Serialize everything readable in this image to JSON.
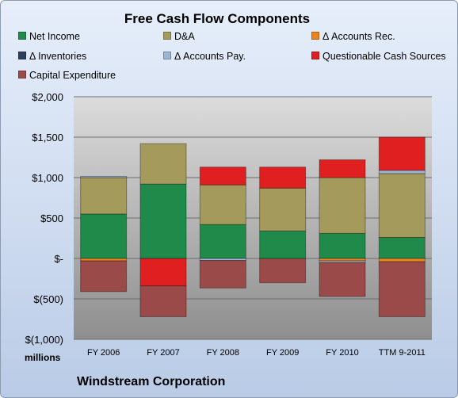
{
  "chart_data": {
    "type": "bar",
    "stacked": true,
    "title": "Free Cash Flow Components",
    "footer": "Windstream Corporation",
    "units_label": "millions",
    "categories": [
      "FY 2006",
      "FY 2007",
      "FY 2008",
      "FY 2009",
      "FY 2010",
      "TTM 9-2011"
    ],
    "ylim": [
      -1000,
      2000
    ],
    "yticks": [
      {
        "value": 2000,
        "label": "$2,000"
      },
      {
        "value": 1500,
        "label": "$1,500"
      },
      {
        "value": 1000,
        "label": "$1,000"
      },
      {
        "value": 500,
        "label": "$500"
      },
      {
        "value": 0,
        "label": "$-"
      },
      {
        "value": -500,
        "label": "$(500)"
      },
      {
        "value": -1000,
        "label": "$(1,000)"
      }
    ],
    "grid": true,
    "legend_position": "top",
    "series": [
      {
        "name": "Net Income",
        "color": "#1f8a4a",
        "values": [
          550,
          920,
          420,
          340,
          310,
          260
        ]
      },
      {
        "name": "D&A",
        "color": "#a39a5c",
        "values": [
          450,
          500,
          490,
          530,
          690,
          790
        ]
      },
      {
        "name": "Δ Accounts Rec.",
        "color": "#e8851e",
        "values": [
          -30,
          0,
          0,
          0,
          -30,
          -40
        ]
      },
      {
        "name": "Δ Inventories",
        "color": "#2e3f5c",
        "values": [
          0,
          0,
          0,
          0,
          0,
          0
        ]
      },
      {
        "name": "Δ Accounts Pay.",
        "color": "#9db4d4",
        "values": [
          15,
          0,
          -25,
          0,
          -20,
          40
        ]
      },
      {
        "name": "Questionable Cash Sources",
        "color": "#e02020",
        "values": [
          0,
          -340,
          220,
          260,
          220,
          410
        ]
      },
      {
        "name": "Capital Expenditure",
        "color": "#9a4a48",
        "values": [
          -380,
          -380,
          -340,
          -300,
          -420,
          -680
        ]
      }
    ]
  }
}
